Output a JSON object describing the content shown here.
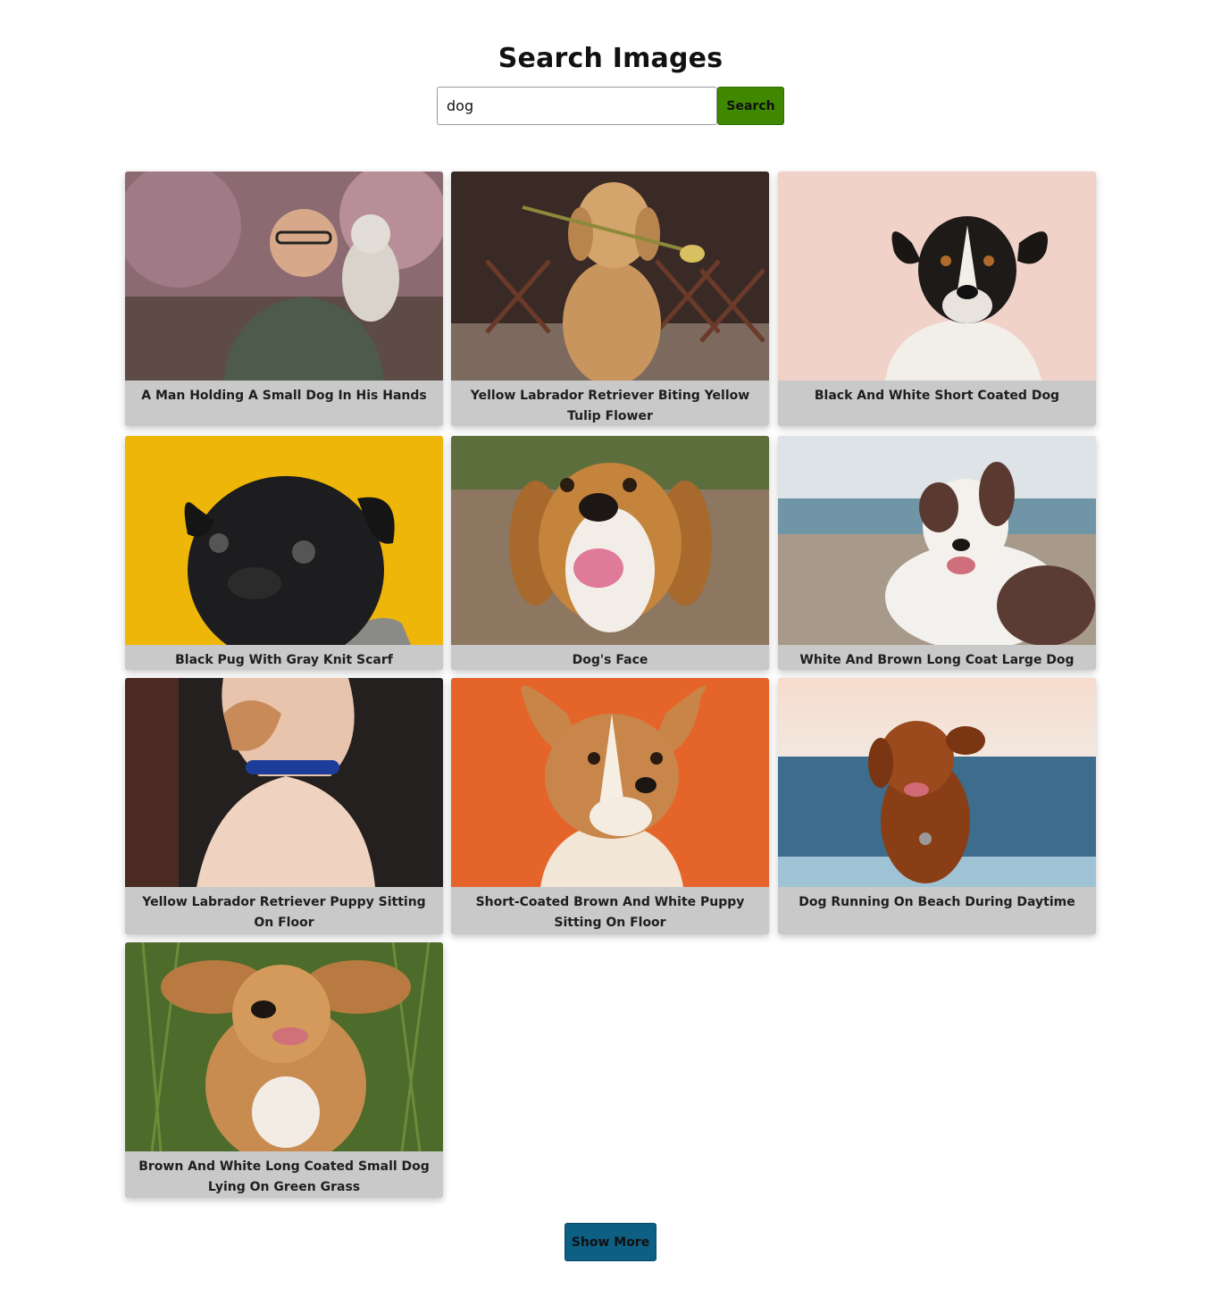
{
  "header": {
    "title": "Search Images"
  },
  "search": {
    "value": "dog",
    "button_label": "Search"
  },
  "results": [
    {
      "caption": "A Man Holding A Small Dog In His Hands"
    },
    {
      "caption": "Yellow Labrador Retriever Biting Yellow Tulip Flower"
    },
    {
      "caption": "Black And White Short Coated Dog"
    },
    {
      "caption": "Black Pug With Gray Knit Scarf"
    },
    {
      "caption": "Dog's Face"
    },
    {
      "caption": "White And Brown Long Coat Large Dog"
    },
    {
      "caption": "Yellow Labrador Retriever Puppy Sitting On Floor"
    },
    {
      "caption": "Short-Coated Brown And White Puppy Sitting On Floor"
    },
    {
      "caption": "Dog Running On Beach During Daytime"
    },
    {
      "caption": "Brown And White Long Coated Small Dog Lying On Green Grass"
    }
  ],
  "footer": {
    "show_more_label": "Show More"
  },
  "colors": {
    "search_button": "#3f8800",
    "show_more_button": "#0d5f84",
    "card_background": "#c9c9c9"
  }
}
